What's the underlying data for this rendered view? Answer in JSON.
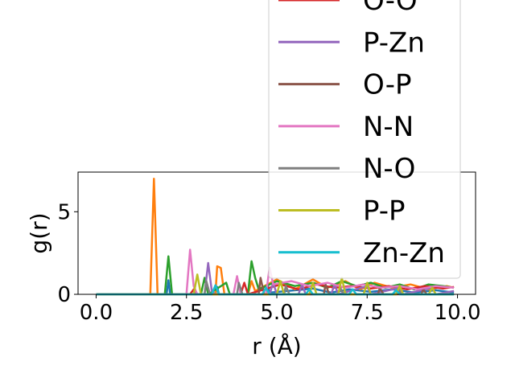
{
  "chart_data": {
    "type": "line",
    "xlabel": "r (Å)",
    "ylabel": "g(r)",
    "xlim": [
      -0.5,
      10.5
    ],
    "ylim": [
      0,
      7.4
    ],
    "xticks": [
      "0.0",
      "2.5",
      "5.0",
      "7.5",
      "10.0"
    ],
    "xtick_values": [
      0,
      2.5,
      5,
      7.5,
      10
    ],
    "yticks": [
      "0",
      "5"
    ],
    "ytick_values": [
      0,
      5
    ],
    "grid": false,
    "legend_position": "upper right (extends above axes)",
    "series": [
      {
        "name": "",
        "color": "#1f77b4",
        "points": [
          [
            0,
            0
          ],
          [
            1.95,
            0
          ],
          [
            2.0,
            0.85
          ],
          [
            2.05,
            0
          ],
          [
            3.3,
            0
          ],
          [
            3.35,
            0.45
          ],
          [
            3.4,
            0
          ],
          [
            4.7,
            0
          ],
          [
            4.75,
            0.5
          ],
          [
            4.8,
            0.1
          ],
          [
            6.0,
            0.35
          ],
          [
            6.5,
            0.1
          ],
          [
            7.0,
            0.3
          ],
          [
            7.6,
            0.15
          ],
          [
            8.2,
            0.3
          ],
          [
            8.8,
            0.1
          ],
          [
            9.4,
            0.25
          ],
          [
            9.9,
            0.1
          ]
        ]
      },
      {
        "name": "",
        "color": "#ff7f0e",
        "points": [
          [
            0,
            0
          ],
          [
            1.5,
            0
          ],
          [
            1.6,
            7.0
          ],
          [
            1.7,
            0
          ],
          [
            3.3,
            0
          ],
          [
            3.35,
            1.7
          ],
          [
            3.45,
            1.6
          ],
          [
            3.55,
            0
          ],
          [
            4.2,
            0
          ],
          [
            4.3,
            0.8
          ],
          [
            4.4,
            0.2
          ],
          [
            5.0,
            0.9
          ],
          [
            5.5,
            0.3
          ],
          [
            6.0,
            0.9
          ],
          [
            6.4,
            0.4
          ],
          [
            6.9,
            0.8
          ],
          [
            7.3,
            0.3
          ],
          [
            7.7,
            0.7
          ],
          [
            8.2,
            0.4
          ],
          [
            8.7,
            0.6
          ],
          [
            9.2,
            0.3
          ],
          [
            9.7,
            0.5
          ],
          [
            9.9,
            0.4
          ]
        ]
      },
      {
        "name": "",
        "color": "#2ca02c",
        "points": [
          [
            0,
            0
          ],
          [
            1.9,
            0
          ],
          [
            2.0,
            2.3
          ],
          [
            2.1,
            0
          ],
          [
            2.9,
            0
          ],
          [
            3.0,
            1.0
          ],
          [
            3.1,
            0
          ],
          [
            3.6,
            0.7
          ],
          [
            3.7,
            0
          ],
          [
            4.2,
            0
          ],
          [
            4.3,
            2.0
          ],
          [
            4.4,
            1.0
          ],
          [
            4.5,
            0.3
          ],
          [
            5.0,
            0.8
          ],
          [
            5.5,
            0.5
          ],
          [
            6.0,
            0.7
          ],
          [
            6.4,
            0.4
          ],
          [
            6.8,
            0.8
          ],
          [
            7.2,
            0.5
          ],
          [
            7.6,
            0.7
          ],
          [
            8.0,
            0.4
          ],
          [
            8.4,
            0.6
          ],
          [
            8.8,
            0.3
          ],
          [
            9.2,
            0.6
          ],
          [
            9.6,
            0.5
          ],
          [
            9.9,
            0.4
          ]
        ]
      },
      {
        "name": "O-O",
        "color": "#d62728",
        "points": [
          [
            0,
            0
          ],
          [
            2.6,
            0
          ],
          [
            2.7,
            0.3
          ],
          [
            2.8,
            0
          ],
          [
            4.0,
            0
          ],
          [
            4.1,
            0.7
          ],
          [
            4.2,
            0
          ],
          [
            5.1,
            0.6
          ],
          [
            5.6,
            0.3
          ],
          [
            6.1,
            0.6
          ],
          [
            6.6,
            0.4
          ],
          [
            7.1,
            0.5
          ],
          [
            7.6,
            0.35
          ],
          [
            8.1,
            0.5
          ],
          [
            8.6,
            0.3
          ],
          [
            9.1,
            0.5
          ],
          [
            9.6,
            0.35
          ],
          [
            9.9,
            0.45
          ]
        ]
      },
      {
        "name": "P-Zn",
        "color": "#9467bd",
        "points": [
          [
            0,
            0
          ],
          [
            3.0,
            0
          ],
          [
            3.1,
            1.9
          ],
          [
            3.2,
            0.2
          ],
          [
            3.3,
            0
          ],
          [
            4.8,
            0
          ],
          [
            4.9,
            0.7
          ],
          [
            5.0,
            0
          ],
          [
            5.6,
            0
          ],
          [
            5.7,
            0.6
          ],
          [
            5.8,
            0
          ],
          [
            6.5,
            0
          ],
          [
            6.6,
            0.6
          ],
          [
            6.7,
            0
          ],
          [
            7.5,
            0.5
          ],
          [
            7.6,
            0
          ],
          [
            8.4,
            0.4
          ],
          [
            8.5,
            0
          ],
          [
            9.3,
            0.4
          ],
          [
            9.4,
            0
          ],
          [
            9.9,
            0.2
          ]
        ]
      },
      {
        "name": "O-P",
        "color": "#8c564b",
        "points": [
          [
            0,
            0
          ],
          [
            4.5,
            0
          ],
          [
            4.55,
            1.0
          ],
          [
            4.65,
            0
          ],
          [
            6.3,
            0
          ],
          [
            6.35,
            0.6
          ],
          [
            6.45,
            0
          ],
          [
            7.8,
            0
          ],
          [
            7.85,
            0.4
          ],
          [
            7.95,
            0
          ],
          [
            9.0,
            0
          ],
          [
            9.05,
            0.3
          ],
          [
            9.15,
            0
          ],
          [
            9.9,
            0
          ]
        ]
      },
      {
        "name": "N-N",
        "color": "#e377c2",
        "points": [
          [
            0,
            0
          ],
          [
            2.5,
            0
          ],
          [
            2.6,
            2.7
          ],
          [
            2.7,
            0.5
          ],
          [
            2.8,
            0
          ],
          [
            3.8,
            0
          ],
          [
            3.9,
            1.1
          ],
          [
            4.0,
            0
          ],
          [
            4.7,
            0
          ],
          [
            4.8,
            1.6
          ],
          [
            4.9,
            0.6
          ],
          [
            5.4,
            0.8
          ],
          [
            5.9,
            0.5
          ],
          [
            6.4,
            0.7
          ],
          [
            6.9,
            0.4
          ],
          [
            7.4,
            0.6
          ],
          [
            7.9,
            0.4
          ],
          [
            8.4,
            0.5
          ],
          [
            8.9,
            0.3
          ],
          [
            9.4,
            0.5
          ],
          [
            9.9,
            0.4
          ]
        ]
      },
      {
        "name": "N-O",
        "color": "#7f7f7f",
        "points": [
          [
            0,
            0
          ],
          [
            3.0,
            0
          ],
          [
            3.05,
            0.8
          ],
          [
            3.15,
            0
          ],
          [
            3.9,
            0
          ],
          [
            3.95,
            0.7
          ],
          [
            4.05,
            0
          ],
          [
            5.2,
            0
          ],
          [
            5.25,
            0.5
          ],
          [
            5.35,
            0
          ],
          [
            6.7,
            0
          ],
          [
            6.75,
            0.4
          ],
          [
            6.85,
            0
          ],
          [
            8.3,
            0
          ],
          [
            8.35,
            0.3
          ],
          [
            8.45,
            0
          ],
          [
            9.9,
            0
          ]
        ]
      },
      {
        "name": "P-P",
        "color": "#bcbd22",
        "points": [
          [
            0,
            0
          ],
          [
            2.7,
            0
          ],
          [
            2.8,
            1.2
          ],
          [
            2.9,
            0
          ],
          [
            5.0,
            0
          ],
          [
            5.1,
            0.8
          ],
          [
            5.2,
            0
          ],
          [
            5.9,
            0
          ],
          [
            6.0,
            0.7
          ],
          [
            6.1,
            0
          ],
          [
            6.7,
            0
          ],
          [
            6.8,
            1.0
          ],
          [
            6.9,
            0
          ],
          [
            7.4,
            0
          ],
          [
            7.5,
            0.7
          ],
          [
            7.6,
            0
          ],
          [
            8.3,
            0
          ],
          [
            8.4,
            0.5
          ],
          [
            8.5,
            0
          ],
          [
            9.2,
            0
          ],
          [
            9.3,
            0.4
          ],
          [
            9.4,
            0
          ],
          [
            9.9,
            0
          ]
        ]
      },
      {
        "name": "Zn-Zn",
        "color": "#17becf",
        "points": [
          [
            0,
            0
          ],
          [
            3.2,
            0
          ],
          [
            3.3,
            0.55
          ],
          [
            3.4,
            0
          ],
          [
            4.6,
            0
          ],
          [
            4.7,
            0.4
          ],
          [
            4.8,
            0
          ],
          [
            5.8,
            0
          ],
          [
            5.9,
            0.3
          ],
          [
            6.0,
            0
          ],
          [
            7.0,
            0
          ],
          [
            7.1,
            0.3
          ],
          [
            7.2,
            0
          ],
          [
            8.2,
            0
          ],
          [
            8.3,
            0.25
          ],
          [
            8.4,
            0
          ],
          [
            9.9,
            0
          ]
        ]
      }
    ]
  }
}
